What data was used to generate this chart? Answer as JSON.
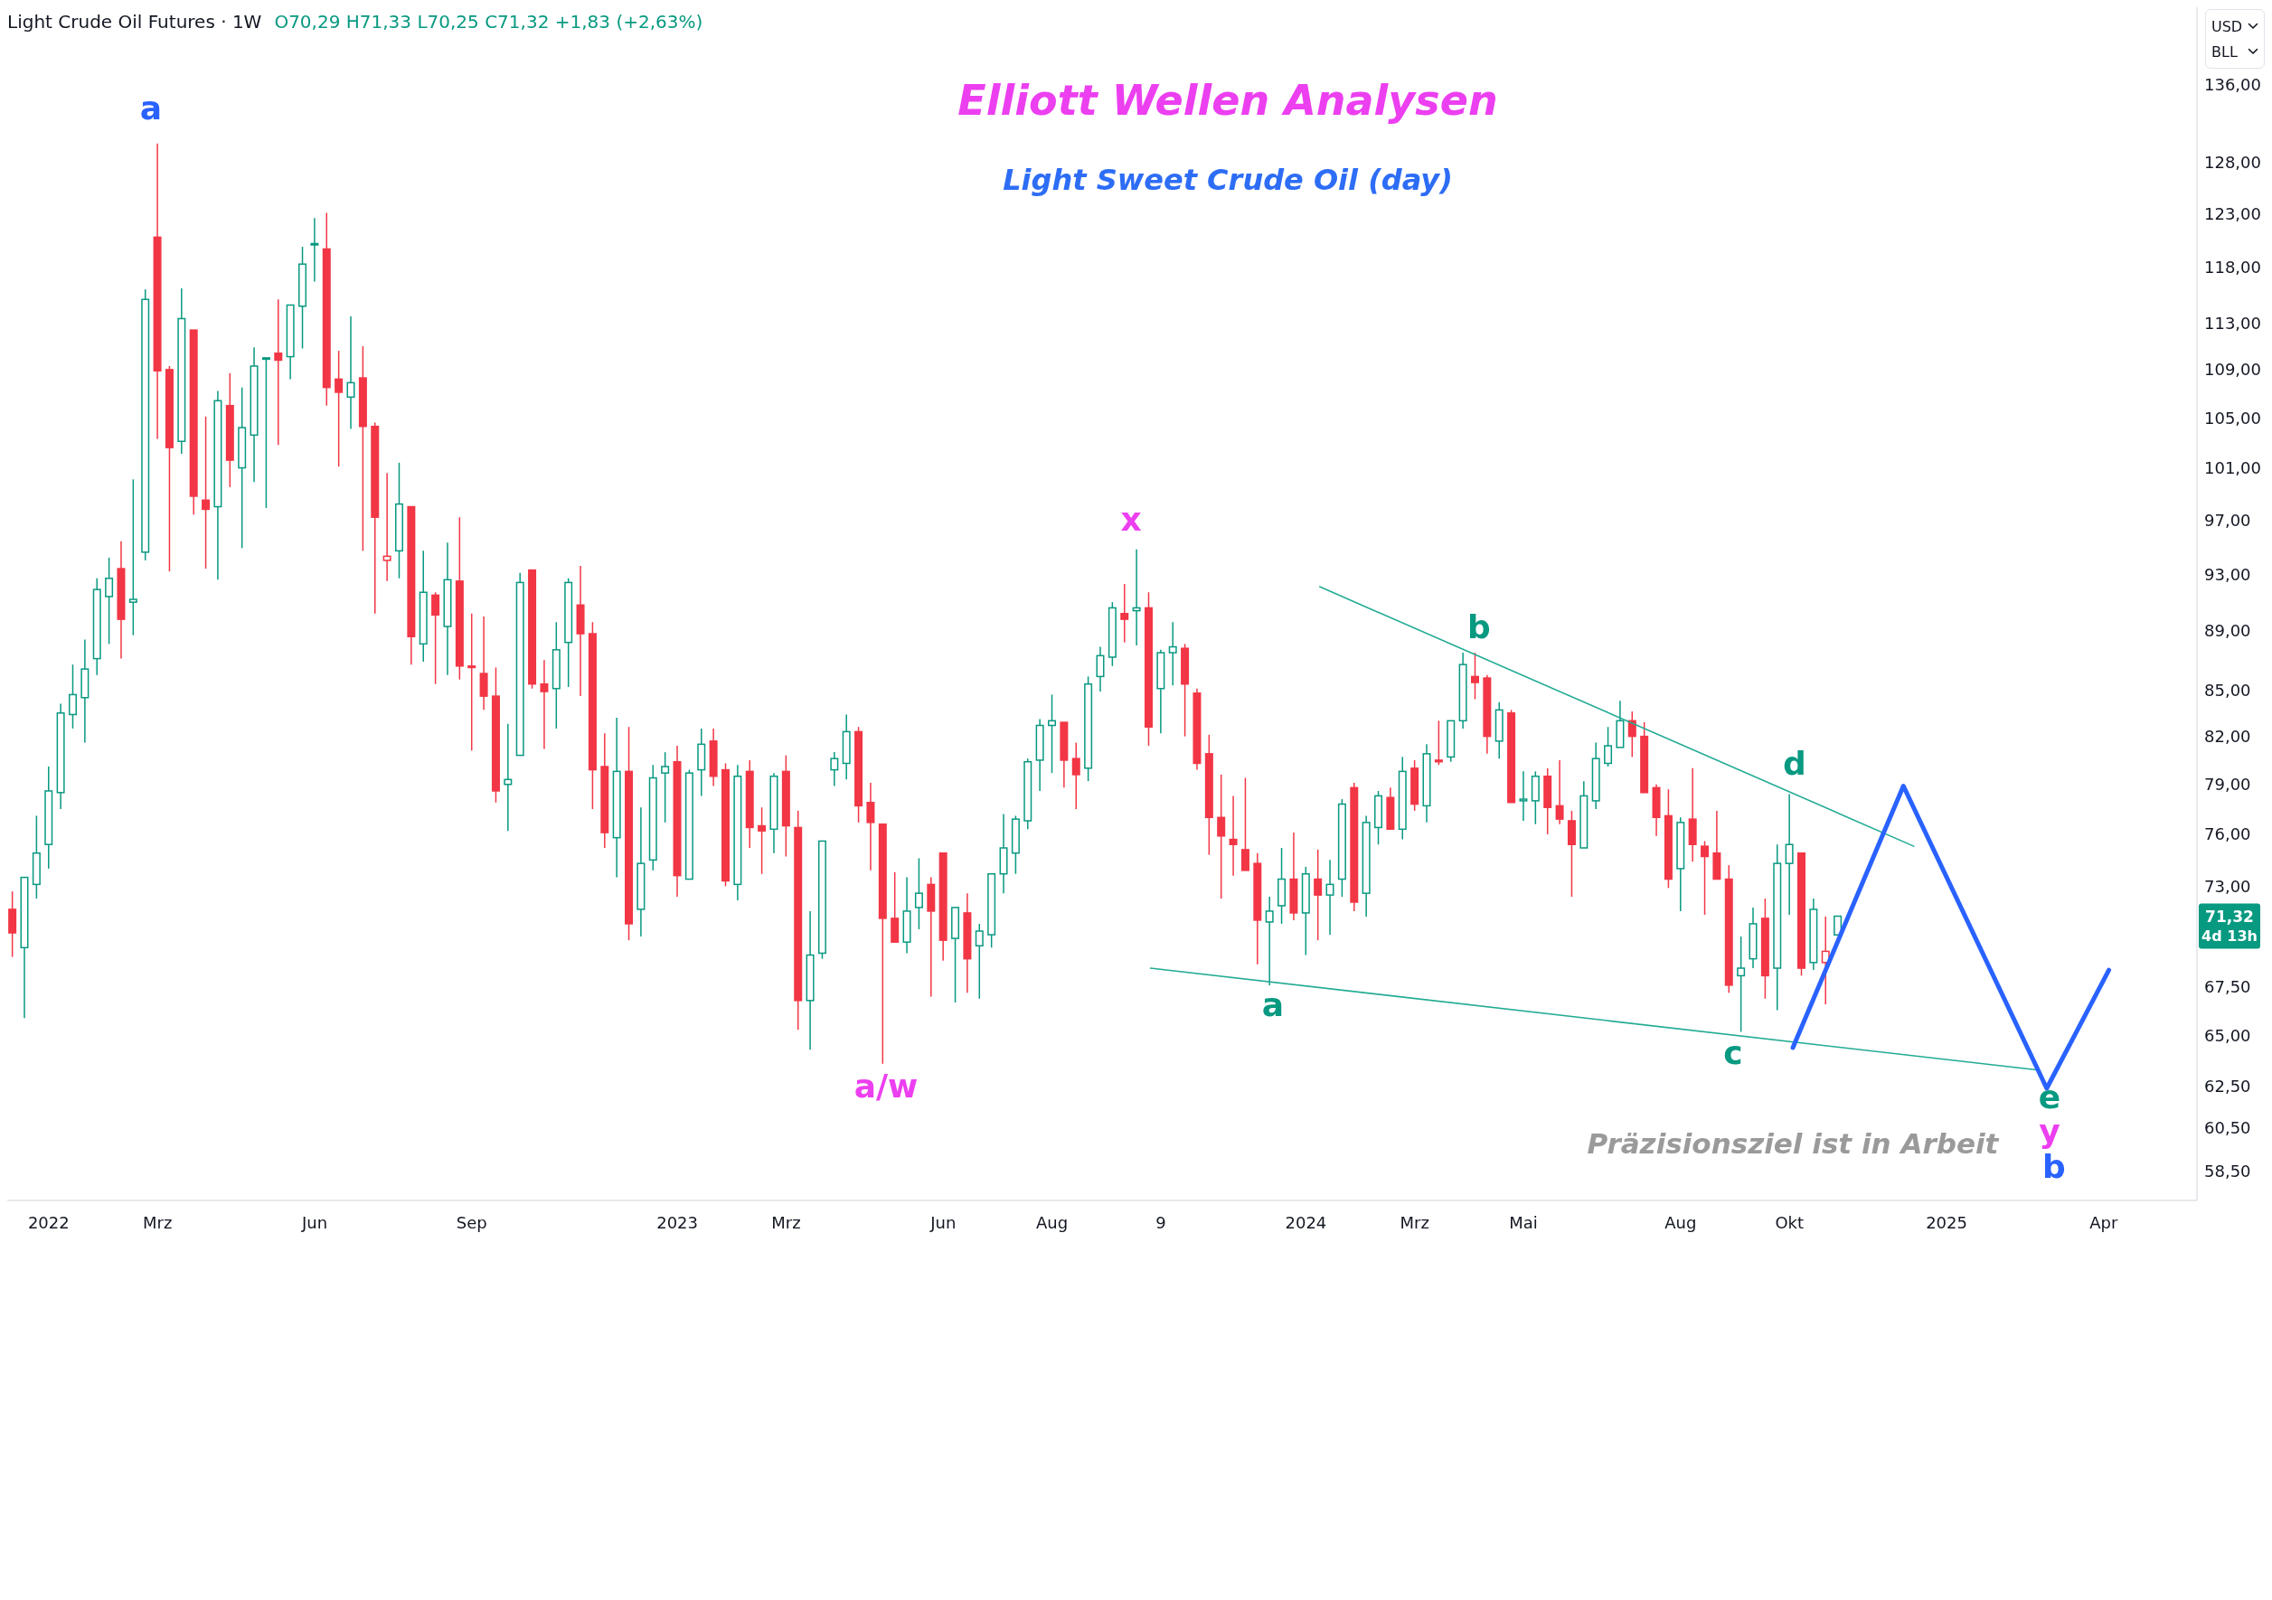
{
  "chart_data": {
    "type": "candlestick",
    "title": "Elliott Wellen Analysen",
    "subtitle": "Light Sweet Crude Oil (day)",
    "x": [
      "2021-12-13",
      "2021-12-20",
      "2021-12-27",
      "2022-01-03",
      "2022-01-10",
      "2022-01-17",
      "2022-01-24",
      "2022-01-31",
      "2022-02-07",
      "2022-02-14",
      "2022-02-21",
      "2022-02-28",
      "2022-03-07",
      "2022-03-14",
      "2022-03-21",
      "2022-03-28",
      "2022-04-04",
      "2022-04-11",
      "2022-04-18",
      "2022-04-25",
      "2022-05-02",
      "2022-05-09",
      "2022-05-16",
      "2022-05-23",
      "2022-05-30",
      "2022-06-06",
      "2022-06-13",
      "2022-06-20",
      "2022-06-27",
      "2022-07-04",
      "2022-07-11",
      "2022-07-18",
      "2022-07-25",
      "2022-08-01",
      "2022-08-08",
      "2022-08-15",
      "2022-08-22",
      "2022-08-29",
      "2022-09-05",
      "2022-09-12",
      "2022-09-19",
      "2022-09-26",
      "2022-10-03",
      "2022-10-10",
      "2022-10-17",
      "2022-10-24",
      "2022-10-31",
      "2022-11-07",
      "2022-11-14",
      "2022-11-21",
      "2022-11-28",
      "2022-12-05",
      "2022-12-12",
      "2022-12-19",
      "2022-12-26",
      "2023-01-02",
      "2023-01-09",
      "2023-01-16",
      "2023-01-23",
      "2023-01-30",
      "2023-02-06",
      "2023-02-13",
      "2023-02-20",
      "2023-02-27",
      "2023-03-06",
      "2023-03-13",
      "2023-03-20",
      "2023-03-27",
      "2023-04-03",
      "2023-04-10",
      "2023-04-17",
      "2023-04-24",
      "2023-05-01",
      "2023-05-08",
      "2023-05-15",
      "2023-05-22",
      "2023-05-29",
      "2023-06-05",
      "2023-06-12",
      "2023-06-19",
      "2023-06-26",
      "2023-07-03",
      "2023-07-10",
      "2023-07-17",
      "2023-07-24",
      "2023-07-31",
      "2023-08-07",
      "2023-08-14",
      "2023-08-21",
      "2023-08-28",
      "2023-09-04",
      "2023-09-11",
      "2023-09-18",
      "2023-09-25",
      "2023-10-02",
      "2023-10-09",
      "2023-10-16",
      "2023-10-23",
      "2023-10-30",
      "2023-11-06",
      "2023-11-13",
      "2023-11-20",
      "2023-11-27",
      "2023-12-04",
      "2023-12-11",
      "2023-12-18",
      "2023-12-25",
      "2024-01-01",
      "2024-01-08",
      "2024-01-15",
      "2024-01-22",
      "2024-01-29",
      "2024-02-05",
      "2024-02-12",
      "2024-02-19",
      "2024-02-26",
      "2024-03-04",
      "2024-03-11",
      "2024-03-18",
      "2024-03-25",
      "2024-04-01",
      "2024-04-08",
      "2024-04-15",
      "2024-04-22",
      "2024-04-29",
      "2024-05-06",
      "2024-05-13",
      "2024-05-20",
      "2024-05-27",
      "2024-06-03",
      "2024-06-10",
      "2024-06-17",
      "2024-06-24",
      "2024-07-01",
      "2024-07-08",
      "2024-07-15",
      "2024-07-22",
      "2024-07-29",
      "2024-08-05",
      "2024-08-12",
      "2024-08-19",
      "2024-08-26",
      "2024-09-02",
      "2024-09-09",
      "2024-09-16",
      "2024-09-23",
      "2024-09-30",
      "2024-10-07",
      "2024-10-14",
      "2024-10-21",
      "2024-10-28",
      "2024-11-04"
    ],
    "ohlc": [
      [
        71.7,
        72.7,
        69.1,
        70.4
      ],
      [
        69.6,
        73.6,
        65.9,
        73.5
      ],
      [
        73.1,
        77.1,
        72.3,
        74.9
      ],
      [
        75.4,
        80.1,
        74.0,
        78.6
      ],
      [
        78.5,
        84.1,
        77.5,
        83.5
      ],
      [
        83.4,
        86.7,
        82.5,
        84.7
      ],
      [
        84.5,
        88.4,
        81.6,
        86.4
      ],
      [
        87.1,
        92.7,
        86.0,
        91.9
      ],
      [
        91.4,
        94.2,
        88.1,
        92.7
      ],
      [
        93.4,
        95.4,
        87.1,
        89.8
      ],
      [
        91.0,
        100.1,
        88.7,
        91.2
      ],
      [
        94.6,
        116.0,
        94.0,
        115.1
      ],
      [
        120.8,
        129.9,
        103.3,
        108.9
      ],
      [
        109.0,
        109.3,
        93.2,
        102.6
      ],
      [
        103.1,
        116.1,
        102.1,
        113.4
      ],
      [
        112.4,
        112.5,
        97.4,
        98.8
      ],
      [
        98.5,
        105.1,
        93.4,
        97.8
      ],
      [
        98.0,
        107.2,
        92.6,
        106.4
      ],
      [
        106.0,
        108.7,
        99.5,
        101.6
      ],
      [
        101.0,
        107.5,
        94.9,
        104.2
      ],
      [
        103.6,
        110.9,
        99.9,
        109.3
      ],
      [
        109.9,
        110.2,
        97.9,
        110.0
      ],
      [
        110.4,
        115.1,
        102.8,
        109.8
      ],
      [
        110.1,
        114.8,
        108.2,
        114.6
      ],
      [
        114.5,
        119.9,
        110.8,
        118.3
      ],
      [
        120.1,
        122.6,
        116.7,
        120.2
      ],
      [
        119.7,
        123.1,
        106.0,
        107.5
      ],
      [
        108.2,
        110.6,
        101.1,
        107.1
      ],
      [
        106.7,
        113.6,
        104.1,
        107.9
      ],
      [
        108.3,
        111.0,
        94.7,
        104.3
      ],
      [
        104.3,
        104.6,
        90.2,
        97.2
      ],
      [
        94.0,
        100.6,
        92.5,
        94.3
      ],
      [
        94.7,
        101.4,
        92.7,
        98.2
      ],
      [
        98.0,
        98.2,
        86.7,
        88.6
      ],
      [
        88.1,
        94.7,
        86.9,
        91.7
      ],
      [
        91.5,
        91.7,
        85.4,
        90.1
      ],
      [
        89.3,
        95.3,
        86.0,
        92.6
      ],
      [
        92.5,
        97.2,
        85.7,
        86.6
      ],
      [
        86.6,
        90.2,
        81.1,
        86.5
      ],
      [
        86.1,
        90.0,
        83.7,
        84.6
      ],
      [
        84.6,
        86.5,
        77.9,
        78.6
      ],
      [
        79.0,
        82.8,
        76.2,
        79.3
      ],
      [
        80.8,
        93.1,
        80.7,
        92.4
      ],
      [
        93.3,
        93.4,
        85.1,
        85.4
      ],
      [
        85.4,
        87.0,
        81.2,
        84.9
      ],
      [
        85.1,
        89.6,
        82.5,
        87.7
      ],
      [
        88.2,
        92.7,
        85.2,
        92.4
      ],
      [
        90.8,
        93.6,
        84.6,
        88.8
      ],
      [
        88.8,
        89.6,
        77.5,
        79.9
      ],
      [
        80.1,
        82.2,
        75.2,
        76.1
      ],
      [
        75.8,
        83.2,
        73.5,
        79.8
      ],
      [
        79.8,
        82.6,
        70.0,
        70.9
      ],
      [
        71.7,
        77.6,
        70.2,
        74.3
      ],
      [
        74.5,
        80.2,
        73.9,
        79.4
      ],
      [
        79.7,
        81.0,
        76.7,
        80.1
      ],
      [
        80.4,
        81.4,
        72.4,
        73.6
      ],
      [
        73.4,
        79.9,
        73.3,
        79.7
      ],
      [
        79.9,
        82.5,
        78.3,
        81.5
      ],
      [
        81.7,
        82.5,
        78.9,
        79.5
      ],
      [
        79.9,
        80.3,
        73.0,
        73.3
      ],
      [
        73.1,
        80.2,
        72.2,
        79.5
      ],
      [
        79.8,
        80.5,
        75.2,
        76.4
      ],
      [
        76.5,
        77.6,
        73.7,
        76.2
      ],
      [
        76.3,
        79.7,
        74.9,
        79.5
      ],
      [
        79.8,
        80.8,
        74.7,
        76.5
      ],
      [
        76.4,
        77.4,
        65.3,
        66.8
      ],
      [
        66.8,
        71.6,
        64.3,
        69.2
      ],
      [
        69.3,
        75.7,
        69.0,
        75.6
      ],
      [
        79.9,
        81.0,
        78.9,
        80.6
      ],
      [
        80.3,
        83.4,
        79.3,
        82.3
      ],
      [
        82.3,
        82.6,
        76.7,
        77.7
      ],
      [
        77.9,
        79.1,
        73.9,
        76.7
      ],
      [
        76.6,
        76.7,
        63.6,
        71.2
      ],
      [
        71.2,
        73.8,
        69.8,
        69.9
      ],
      [
        69.9,
        73.5,
        69.3,
        71.6
      ],
      [
        71.8,
        74.6,
        70.6,
        72.6
      ],
      [
        73.1,
        73.5,
        67.0,
        71.6
      ],
      [
        74.9,
        75.0,
        68.9,
        70.0
      ],
      [
        70.1,
        71.9,
        66.7,
        71.8
      ],
      [
        71.5,
        72.6,
        67.2,
        69.0
      ],
      [
        69.7,
        70.9,
        66.9,
        70.5
      ],
      [
        70.3,
        73.8,
        69.6,
        73.7
      ],
      [
        73.7,
        77.2,
        72.6,
        75.2
      ],
      [
        74.9,
        77.1,
        73.7,
        76.9
      ],
      [
        76.8,
        80.6,
        76.3,
        80.4
      ],
      [
        80.5,
        83.1,
        78.6,
        82.7
      ],
      [
        82.7,
        84.7,
        79.7,
        83.0
      ],
      [
        82.9,
        83.0,
        78.8,
        80.5
      ],
      [
        80.6,
        81.6,
        77.5,
        79.6
      ],
      [
        80.0,
        85.9,
        79.2,
        85.4
      ],
      [
        85.9,
        87.9,
        84.9,
        87.3
      ],
      [
        87.2,
        91.0,
        86.6,
        90.6
      ],
      [
        90.2,
        92.3,
        88.2,
        89.8
      ],
      [
        90.4,
        94.8,
        88.0,
        90.6
      ],
      [
        90.6,
        91.7,
        81.4,
        82.6
      ],
      [
        85.1,
        87.7,
        82.2,
        87.5
      ],
      [
        87.5,
        89.6,
        85.3,
        87.9
      ],
      [
        87.8,
        88.1,
        82.0,
        85.4
      ],
      [
        84.8,
        85.1,
        79.9,
        80.3
      ],
      [
        80.9,
        82.1,
        74.8,
        77.0
      ],
      [
        77.0,
        79.6,
        72.3,
        75.9
      ],
      [
        75.7,
        78.3,
        73.6,
        75.4
      ],
      [
        75.1,
        79.4,
        73.8,
        73.9
      ],
      [
        74.3,
        74.9,
        68.7,
        71.1
      ],
      [
        71.0,
        72.4,
        67.6,
        71.6
      ],
      [
        71.9,
        75.2,
        70.9,
        73.4
      ],
      [
        73.4,
        76.1,
        71.1,
        71.5
      ],
      [
        71.5,
        74.1,
        69.2,
        73.7
      ],
      [
        73.4,
        75.1,
        70.0,
        72.5
      ],
      [
        72.5,
        74.5,
        70.3,
        73.1
      ],
      [
        73.4,
        78.1,
        72.4,
        77.8
      ],
      [
        78.8,
        79.1,
        71.6,
        72.1
      ],
      [
        72.6,
        77.1,
        71.3,
        76.7
      ],
      [
        76.4,
        78.6,
        75.4,
        78.3
      ],
      [
        78.2,
        78.8,
        76.2,
        76.3
      ],
      [
        76.3,
        80.7,
        75.7,
        79.8
      ],
      [
        80.0,
        80.5,
        77.4,
        77.8
      ],
      [
        77.7,
        81.5,
        76.7,
        80.9
      ],
      [
        80.5,
        83.0,
        80.2,
        80.4
      ],
      [
        80.7,
        83.1,
        80.4,
        83.0
      ],
      [
        83.0,
        87.5,
        82.5,
        86.7
      ],
      [
        85.9,
        87.5,
        84.4,
        85.5
      ],
      [
        85.8,
        86.0,
        80.9,
        82.0
      ],
      [
        81.7,
        84.2,
        80.6,
        83.7
      ],
      [
        83.5,
        83.7,
        77.8,
        77.9
      ],
      [
        78.0,
        79.8,
        76.8,
        78.1
      ],
      [
        78.0,
        79.8,
        76.6,
        79.5
      ],
      [
        79.5,
        80.0,
        76.0,
        77.6
      ],
      [
        77.7,
        80.5,
        76.6,
        76.9
      ],
      [
        76.8,
        77.4,
        72.4,
        75.4
      ],
      [
        75.2,
        79.2,
        75.1,
        78.3
      ],
      [
        78.0,
        81.6,
        77.5,
        80.6
      ],
      [
        80.3,
        82.6,
        80.1,
        81.4
      ],
      [
        81.3,
        84.3,
        81.2,
        83.0
      ],
      [
        83.0,
        83.6,
        80.7,
        82.0
      ],
      [
        82.0,
        82.9,
        78.4,
        78.5
      ],
      [
        78.8,
        79.0,
        75.9,
        77.0
      ],
      [
        77.1,
        78.7,
        72.9,
        73.4
      ],
      [
        74.0,
        77.0,
        71.6,
        76.7
      ],
      [
        76.9,
        80.0,
        74.4,
        75.4
      ],
      [
        75.3,
        75.6,
        71.4,
        74.7
      ],
      [
        74.9,
        77.4,
        73.3,
        73.4
      ],
      [
        73.4,
        74.2,
        67.2,
        67.6
      ],
      [
        68.1,
        70.2,
        65.2,
        68.5
      ],
      [
        69.0,
        71.8,
        68.5,
        70.9
      ],
      [
        71.2,
        72.3,
        66.9,
        68.1
      ],
      [
        68.5,
        75.4,
        66.3,
        74.3
      ],
      [
        74.3,
        78.4,
        71.4,
        75.4
      ],
      [
        74.9,
        75.0,
        68.1,
        68.5
      ],
      [
        68.8,
        72.3,
        68.4,
        71.7
      ],
      [
        68.8,
        71.3,
        66.6,
        69.4
      ],
      [
        70.29,
        71.33,
        70.25,
        71.32
      ]
    ],
    "colors": [
      "#f23645",
      "#089981",
      "#089981",
      "#089981",
      "#089981",
      "#089981",
      "#089981",
      "#089981",
      "#089981",
      "#f23645",
      "#089981",
      "#089981",
      "#f23645",
      "#f23645",
      "#089981",
      "#f23645",
      "#f23645",
      "#089981",
      "#f23645",
      "#089981",
      "#089981",
      "#089981",
      "#f23645",
      "#089981",
      "#089981",
      "#089981",
      "#f23645",
      "#f23645",
      "#089981",
      "#f23645",
      "#f23645",
      "#f23645",
      "#089981",
      "#f23645",
      "#089981",
      "#f23645",
      "#089981",
      "#f23645",
      "#f23645",
      "#f23645",
      "#f23645",
      "#089981",
      "#089981",
      "#f23645",
      "#f23645",
      "#089981",
      "#089981",
      "#f23645",
      "#f23645",
      "#f23645",
      "#089981",
      "#f23645",
      "#089981",
      "#089981",
      "#089981",
      "#f23645",
      "#089981",
      "#089981",
      "#f23645",
      "#f23645",
      "#089981",
      "#f23645",
      "#f23645",
      "#089981",
      "#f23645",
      "#f23645",
      "#089981",
      "#089981",
      "#089981",
      "#089981",
      "#f23645",
      "#f23645",
      "#f23645",
      "#f23645",
      "#089981",
      "#089981",
      "#f23645",
      "#f23645",
      "#089981",
      "#f23645",
      "#089981",
      "#089981",
      "#089981",
      "#089981",
      "#089981",
      "#089981",
      "#089981",
      "#f23645",
      "#f23645",
      "#089981",
      "#089981",
      "#089981",
      "#f23645",
      "#089981",
      "#f23645",
      "#089981",
      "#089981",
      "#f23645",
      "#f23645",
      "#f23645",
      "#f23645",
      "#f23645",
      "#f23645",
      "#f23645",
      "#089981",
      "#089981",
      "#f23645",
      "#089981",
      "#f23645",
      "#089981",
      "#089981",
      "#f23645",
      "#089981",
      "#089981",
      "#f23645",
      "#089981",
      "#f23645",
      "#089981",
      "#f23645",
      "#089981",
      "#089981",
      "#f23645",
      "#f23645",
      "#089981",
      "#f23645",
      "#089981",
      "#089981",
      "#f23645",
      "#f23645",
      "#f23645",
      "#089981",
      "#089981",
      "#089981",
      "#089981",
      "#f23645",
      "#f23645",
      "#f23645",
      "#f23645",
      "#089981",
      "#f23645",
      "#f23645",
      "#f23645",
      "#f23645",
      "#089981",
      "#089981",
      "#f23645",
      "#089981",
      "#089981",
      "#f23645",
      "#089981",
      "#f23645",
      "#089981"
    ],
    "series": [
      {
        "type": "line",
        "x": [
          "2024-01-09",
          "2024-12-18"
        ],
        "values": [
          92.1,
          75.3
        ],
        "color": "#22ab94"
      },
      {
        "type": "line",
        "x": [
          "2023-10-03",
          "2025-02-27"
        ],
        "values": [
          68.5,
          63.3
        ],
        "color": "#22ab94"
      },
      {
        "type": "line",
        "x": [
          "2024-10-09",
          "2024-12-12",
          "2025-03-05",
          "2025-04-10"
        ],
        "values": [
          64.4,
          78.9,
          62.4,
          68.4
        ],
        "color": "#2962ff"
      }
    ],
    "log": true,
    "ylim": [
      57.2,
      144.4
    ],
    "yticks": [
      {
        "value": 58.5,
        "label": "58,50"
      },
      {
        "value": 60.5,
        "label": "60,50"
      },
      {
        "value": 62.5,
        "label": "62,50"
      },
      {
        "value": 65,
        "label": "65,00"
      },
      {
        "value": 67.5,
        "label": "67,50"
      },
      {
        "value": 73,
        "label": "73,00"
      },
      {
        "value": 76,
        "label": "76,00"
      },
      {
        "value": 79,
        "label": "79,00"
      },
      {
        "value": 82,
        "label": "82,00"
      },
      {
        "value": 85,
        "label": "85,00"
      },
      {
        "value": 89,
        "label": "89,00"
      },
      {
        "value": 93,
        "label": "93,00"
      },
      {
        "value": 97,
        "label": "97,00"
      },
      {
        "value": 101,
        "label": "101,00"
      },
      {
        "value": 105,
        "label": "105,00"
      },
      {
        "value": 109,
        "label": "109,00"
      },
      {
        "value": 113,
        "label": "113,00"
      },
      {
        "value": 118,
        "label": "118,00"
      },
      {
        "value": 123,
        "label": "123,00"
      },
      {
        "value": 128,
        "label": "128,00"
      },
      {
        "value": 136,
        "label": "136,00"
      }
    ],
    "xlim": [
      "2021-12-10",
      "2025-05-31"
    ],
    "xticks": [
      {
        "value": "2022-01-03",
        "label": "2022"
      },
      {
        "value": "2022-03-07",
        "label": "Mrz"
      },
      {
        "value": "2022-06-06",
        "label": "Jun"
      },
      {
        "value": "2022-09-05",
        "label": "Sep"
      },
      {
        "value": "2023-01-02",
        "label": "2023"
      },
      {
        "value": "2023-03-06",
        "label": "Mrz"
      },
      {
        "value": "2023-06-05",
        "label": "Jun"
      },
      {
        "value": "2023-08-07",
        "label": "Aug"
      },
      {
        "value": "2023-10-09",
        "label": "9"
      },
      {
        "value": "2024-01-01",
        "label": "2024"
      },
      {
        "value": "2024-03-04",
        "label": "Mrz"
      },
      {
        "value": "2024-05-06",
        "label": "Mai"
      },
      {
        "value": "2024-08-05",
        "label": "Aug"
      },
      {
        "value": "2024-10-07",
        "label": "Okt"
      },
      {
        "value": "2025-01-06",
        "label": "2025"
      },
      {
        "value": "2025-04-07",
        "label": "Apr"
      }
    ],
    "annotations": [
      "Light Crude Oil Futures · 1W",
      "O70,29 H71,33 L70,25 C71,32 +1,83 (+2,63%)",
      "USD",
      "BLL",
      "a",
      "a/w",
      "x",
      "a",
      "b",
      "c",
      "d",
      "e",
      "y",
      "b",
      "Präzisionsziel ist in Arbeit",
      "71,32",
      "4d 13h"
    ]
  }
}
